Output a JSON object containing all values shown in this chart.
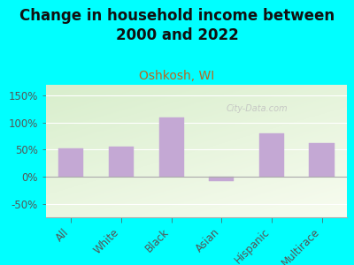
{
  "title": "Change in household income between\n2000 and 2022",
  "subtitle": "Oshkosh, WI",
  "categories": [
    "All",
    "White",
    "Black",
    "Asian",
    "Hispanic",
    "Multirace"
  ],
  "values": [
    52,
    55,
    110,
    -8,
    80,
    63
  ],
  "bar_color": "#c4a8d4",
  "background_color": "#00FFFF",
  "chart_bg_topleft": "#d8eecc",
  "chart_bg_bottomright": "#f0f8e8",
  "title_fontsize": 12,
  "subtitle_fontsize": 10,
  "subtitle_color": "#b86820",
  "ylabel_ticks": [
    "-50%",
    "0%",
    "50%",
    "100%",
    "150%"
  ],
  "ytick_values": [
    -50,
    0,
    50,
    100,
    150
  ],
  "ylim": [
    -75,
    170
  ],
  "watermark": "City-Data.com",
  "watermark_color": "#c0c0c0",
  "tick_label_color": "#555555",
  "axis_color": "#aaaaaa",
  "grid_color": "#ffffff"
}
